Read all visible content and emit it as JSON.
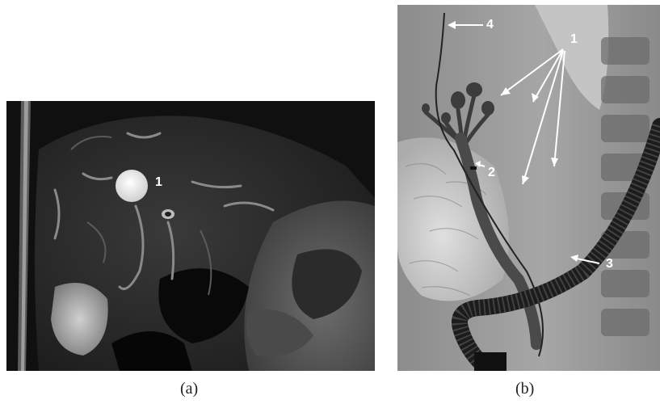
{
  "figure": {
    "panels": [
      {
        "id": "a",
        "caption": "(a)",
        "image_kind": "MRI T2-weighted axial liver scan (grayscale)",
        "annotations": [
          {
            "label": "1"
          }
        ]
      },
      {
        "id": "b",
        "caption": "(b)",
        "image_kind": "Fluoroscopic cholangiogram with endoscope (grayscale)",
        "annotations": [
          {
            "label": "1"
          },
          {
            "label": "2"
          },
          {
            "label": "3"
          },
          {
            "label": "4"
          }
        ]
      }
    ]
  },
  "colors": {
    "mri_background": "#121212",
    "xray_background": "#9a9a9a",
    "annotation_text": "#ffffff",
    "caption_text": "#222222"
  }
}
